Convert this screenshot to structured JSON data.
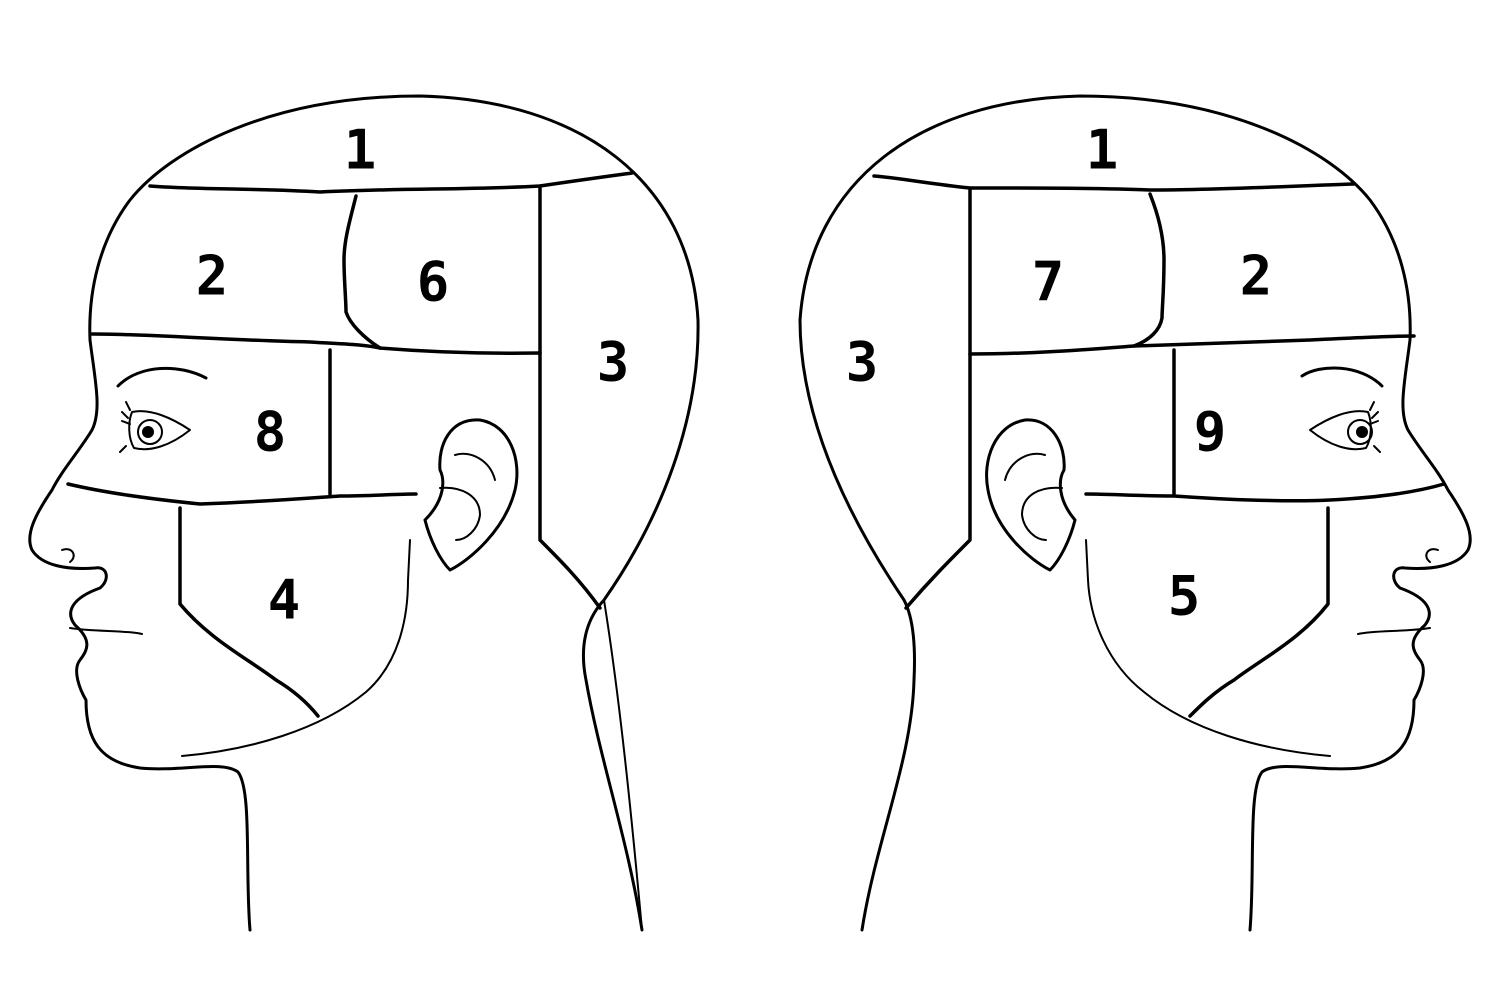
{
  "left_head": {
    "zones": [
      {
        "id": "top",
        "label": "1"
      },
      {
        "id": "front-upper",
        "label": "2"
      },
      {
        "id": "crown-center",
        "label": "6"
      },
      {
        "id": "back",
        "label": "3"
      },
      {
        "id": "temple",
        "label": "8"
      },
      {
        "id": "jaw",
        "label": "4"
      }
    ]
  },
  "right_head": {
    "zones": [
      {
        "id": "top",
        "label": "1"
      },
      {
        "id": "crown-center",
        "label": "7"
      },
      {
        "id": "front-upper",
        "label": "2"
      },
      {
        "id": "back",
        "label": "3"
      },
      {
        "id": "temple",
        "label": "9"
      },
      {
        "id": "jaw",
        "label": "5"
      }
    ]
  }
}
